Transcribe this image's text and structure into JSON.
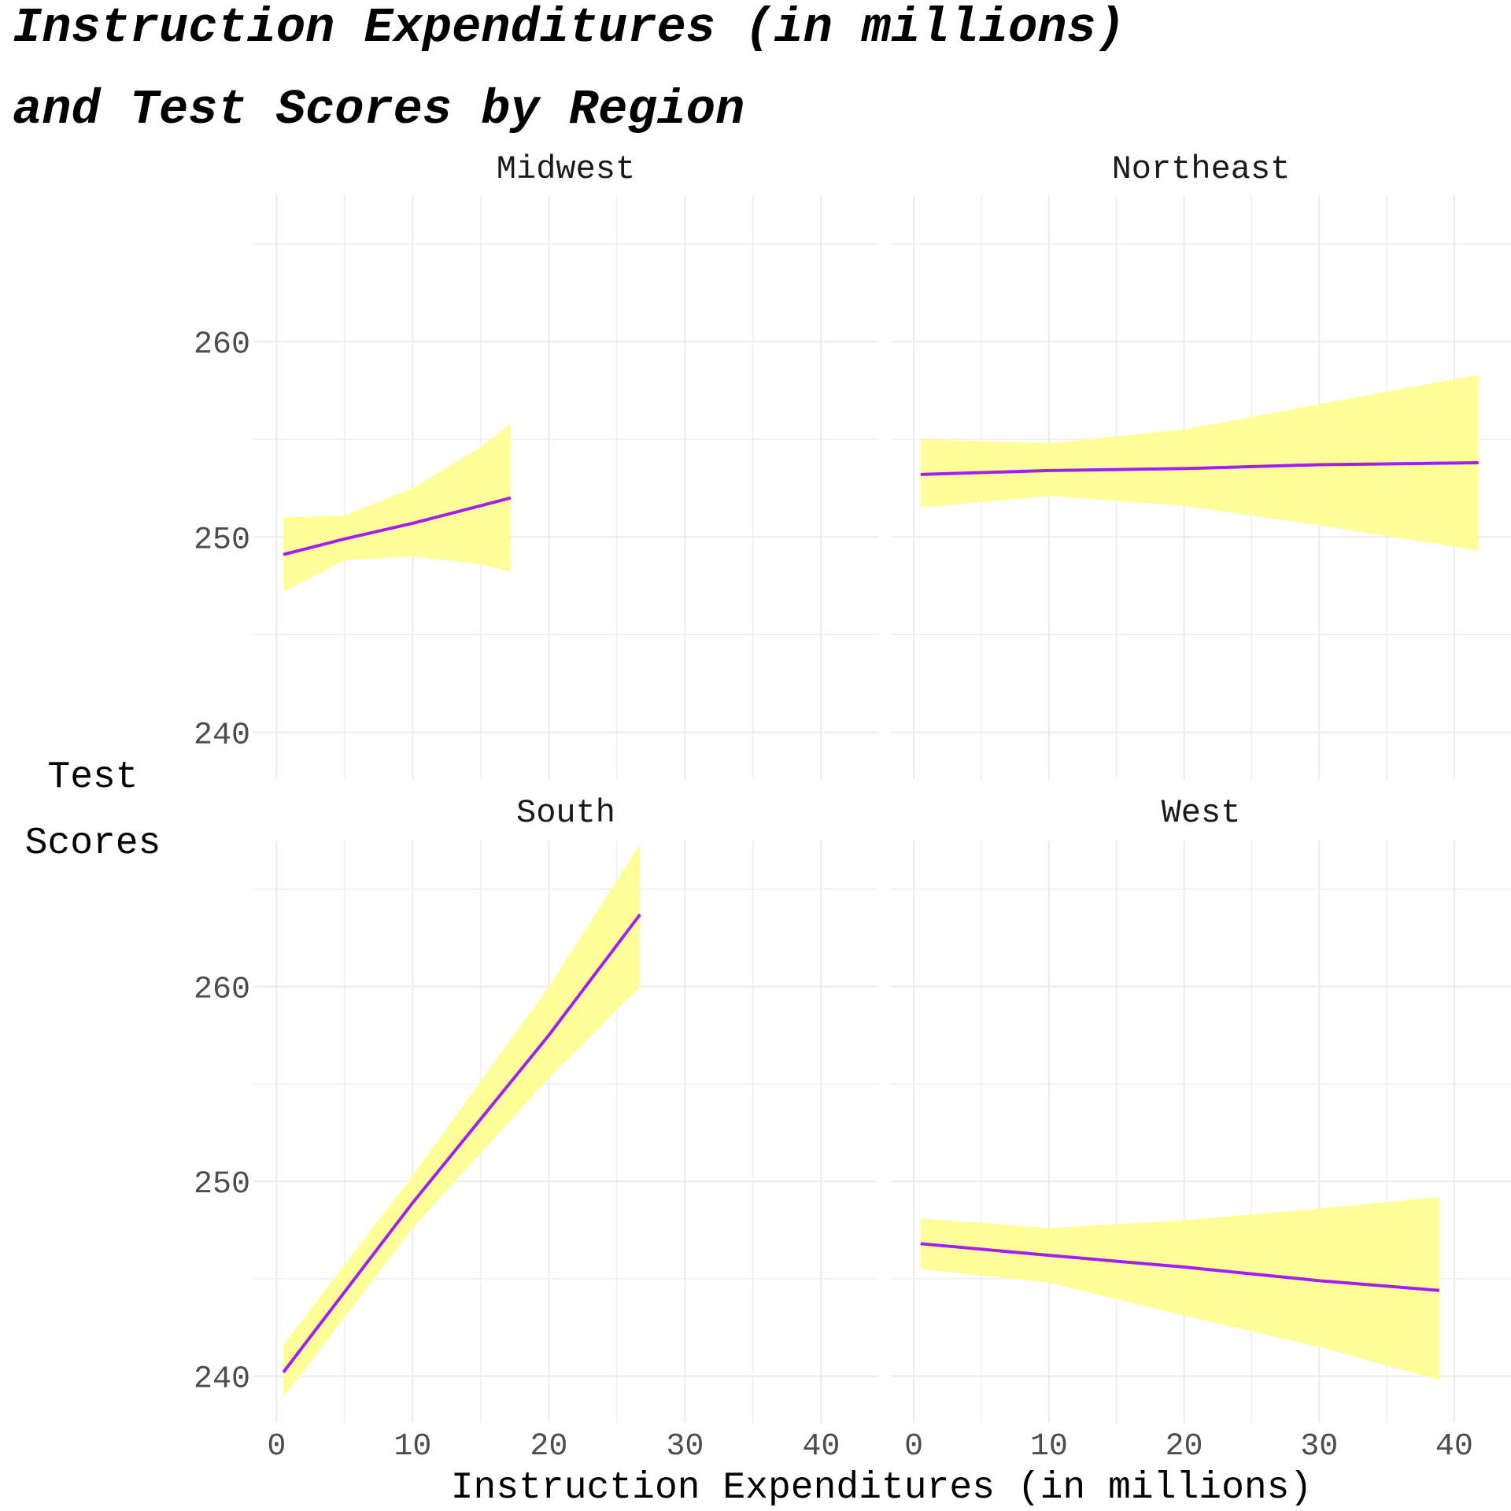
{
  "chart_data": {
    "type": "line",
    "title_lines": [
      "Instruction Expenditures (in millions)",
      "and Test Scores by Region"
    ],
    "xlabel": "Instruction Expenditures (in millions)",
    "ylabel_lines": [
      "Test",
      "Scores"
    ],
    "xlim": [
      -1.7,
      44.2
    ],
    "ylim": [
      237.6,
      267.5
    ],
    "x_ticks": [
      0,
      10,
      20,
      30,
      40
    ],
    "y_ticks": [
      240,
      250,
      260
    ],
    "grid": true,
    "colors": {
      "line": "#a020f0",
      "band": "#ffff99",
      "grid": "#ebebeb",
      "tick_text": "#4d4d4d"
    },
    "panels": [
      {
        "name": "Midwest",
        "x": [
          0.5,
          5,
          10,
          15,
          17.2
        ],
        "fit": [
          249.1,
          249.9,
          250.7,
          251.6,
          252.0
        ],
        "lower": [
          247.2,
          248.8,
          249.0,
          248.6,
          248.2
        ],
        "upper": [
          251.0,
          251.1,
          252.5,
          254.6,
          255.8
        ]
      },
      {
        "name": "Northeast",
        "x": [
          0.5,
          10,
          20,
          30,
          41.8
        ],
        "fit": [
          253.2,
          253.4,
          253.5,
          253.7,
          253.8
        ],
        "lower": [
          251.5,
          252.1,
          251.6,
          250.6,
          249.3
        ],
        "upper": [
          255.0,
          254.8,
          255.5,
          256.8,
          258.3
        ]
      },
      {
        "name": "South",
        "x": [
          0.5,
          10,
          20,
          26.7
        ],
        "fit": [
          240.2,
          248.9,
          257.5,
          263.7
        ],
        "lower": [
          238.9,
          247.6,
          255.3,
          260.0
        ],
        "upper": [
          241.6,
          250.3,
          260.0,
          267.3
        ]
      },
      {
        "name": "West",
        "x": [
          0.5,
          10,
          20,
          30,
          38.9
        ],
        "fit": [
          246.8,
          246.2,
          245.6,
          244.9,
          244.4
        ],
        "lower": [
          245.5,
          244.8,
          243.1,
          241.5,
          239.8
        ],
        "upper": [
          248.1,
          247.6,
          248.0,
          248.6,
          249.2
        ]
      }
    ]
  }
}
